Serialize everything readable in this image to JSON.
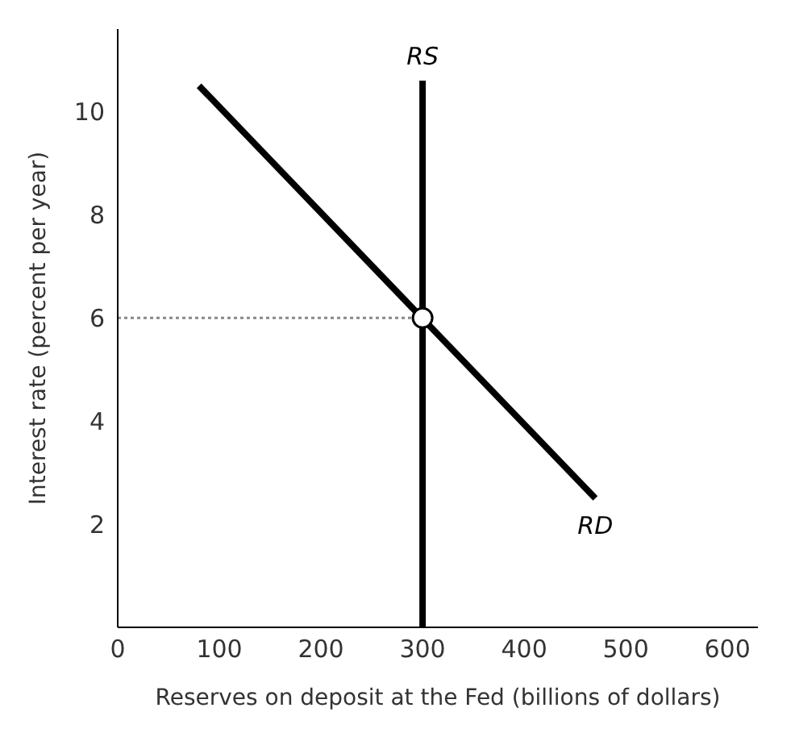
{
  "chart_data": {
    "type": "line",
    "xlabel": "Reserves on deposit at the Fed (billions of dollars)",
    "ylabel": "Interest rate (percent per year)",
    "xlim": [
      0,
      630
    ],
    "xticks": [
      0,
      100,
      200,
      300,
      400,
      500,
      600
    ],
    "ylim": [
      0,
      11.6
    ],
    "yticks": [
      2,
      4,
      6,
      8,
      10
    ],
    "grid": false,
    "legend": false,
    "marker": "none",
    "series": [
      {
        "line_style": "dotted",
        "color": "#888888",
        "x": [
          0,
          300
        ],
        "values": [
          6,
          6
        ]
      },
      {
        "name": "RS",
        "color": "#000000",
        "x": [
          300,
          300
        ],
        "values": [
          0,
          10.6
        ]
      },
      {
        "name": "RD",
        "color": "#000000",
        "x": [
          80,
          470
        ],
        "values": [
          10.5,
          2.5
        ]
      },
      {
        "type": "scatter",
        "marker": "circle",
        "color": "#000000",
        "x": [
          300
        ],
        "values": [
          6
        ]
      }
    ]
  }
}
